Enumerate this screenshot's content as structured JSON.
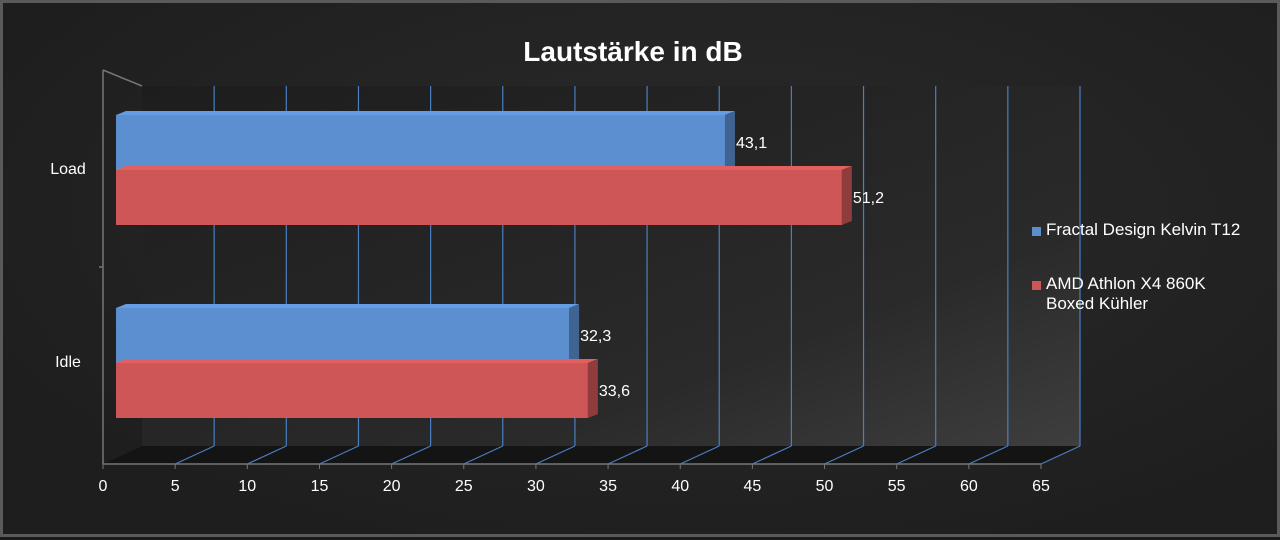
{
  "chart_data": {
    "type": "bar",
    "orientation": "horizontal",
    "style": "3d",
    "title": "Lautstärke in dB",
    "categories": [
      "Load",
      "Idle"
    ],
    "series": [
      {
        "name": "Fractal Design Kelvin T12",
        "color": "#5b8fd0",
        "values": [
          43.1,
          32.3
        ],
        "labels": [
          "43,1",
          "32,3"
        ]
      },
      {
        "name": "AMD Athlon X4 860K Boxed Kühler",
        "name_lines": [
          "AMD Athlon X4 860K",
          "Boxed Kühler"
        ],
        "color": "#cf5656",
        "values": [
          51.2,
          33.6
        ],
        "labels": [
          "51,2",
          "33,6"
        ]
      }
    ],
    "xlim": [
      0,
      65
    ],
    "x_ticks": [
      "0",
      "5",
      "10",
      "15",
      "20",
      "25",
      "30",
      "35",
      "40",
      "45",
      "50",
      "55",
      "60",
      "65"
    ],
    "gridlines": true,
    "grid_color": "#4a7fc0",
    "legend_position": "right"
  }
}
